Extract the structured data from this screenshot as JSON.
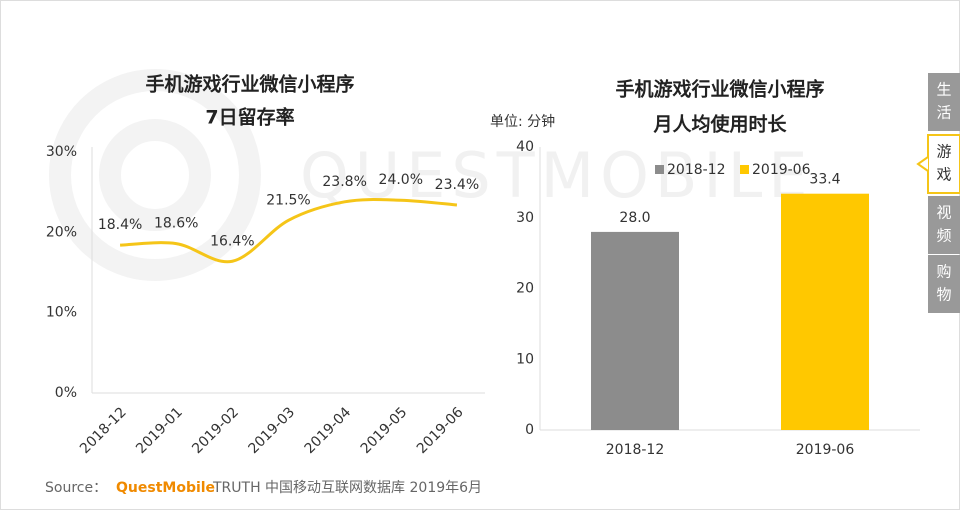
{
  "watermark": "QUESTMOBILE",
  "chart_data": [
    {
      "type": "line",
      "title": "手机游戏行业微信小程序",
      "subtitle": "7日留存率",
      "categories": [
        "2018-12",
        "2019-01",
        "2019-02",
        "2019-03",
        "2019-04",
        "2019-05",
        "2019-06"
      ],
      "values": [
        18.4,
        18.6,
        16.4,
        21.5,
        23.8,
        24.0,
        23.4
      ],
      "value_labels": [
        "18.4%",
        "18.6%",
        "16.4%",
        "21.5%",
        "23.8%",
        "24.0%",
        "23.4%"
      ],
      "color": "#f5c518",
      "ylim": [
        0,
        30
      ],
      "yticks": [
        {
          "value": 0,
          "label": "0%"
        },
        {
          "value": 10,
          "label": "10%"
        },
        {
          "value": 20,
          "label": "20%"
        },
        {
          "value": 30,
          "label": "30%"
        }
      ]
    },
    {
      "type": "bar",
      "title": "手机游戏行业微信小程序",
      "subtitle": "月人均使用时长",
      "ylabel": "单位: 分钟",
      "categories": [
        "2018-12",
        "2019-06"
      ],
      "series": [
        {
          "name": "2018-12",
          "color": "#8c8c8c",
          "values": [
            28.0,
            null
          ],
          "value_labels": [
            "28.0",
            null
          ]
        },
        {
          "name": "2019-06",
          "color": "#ffc800",
          "values": [
            null,
            33.4
          ],
          "value_labels": [
            null,
            "33.4"
          ]
        }
      ],
      "ylim": [
        0,
        40
      ],
      "yticks": [
        0,
        10,
        20,
        30,
        40
      ]
    }
  ],
  "source": {
    "prefix": "Source：",
    "brand": "QuestMobile",
    "text": "TRUTH 中国移动互联网数据库 2019年6月"
  },
  "tabs": [
    [
      "生",
      "活"
    ],
    [
      "游",
      "戏"
    ],
    [
      "视",
      "频"
    ],
    [
      "购",
      "物"
    ]
  ]
}
